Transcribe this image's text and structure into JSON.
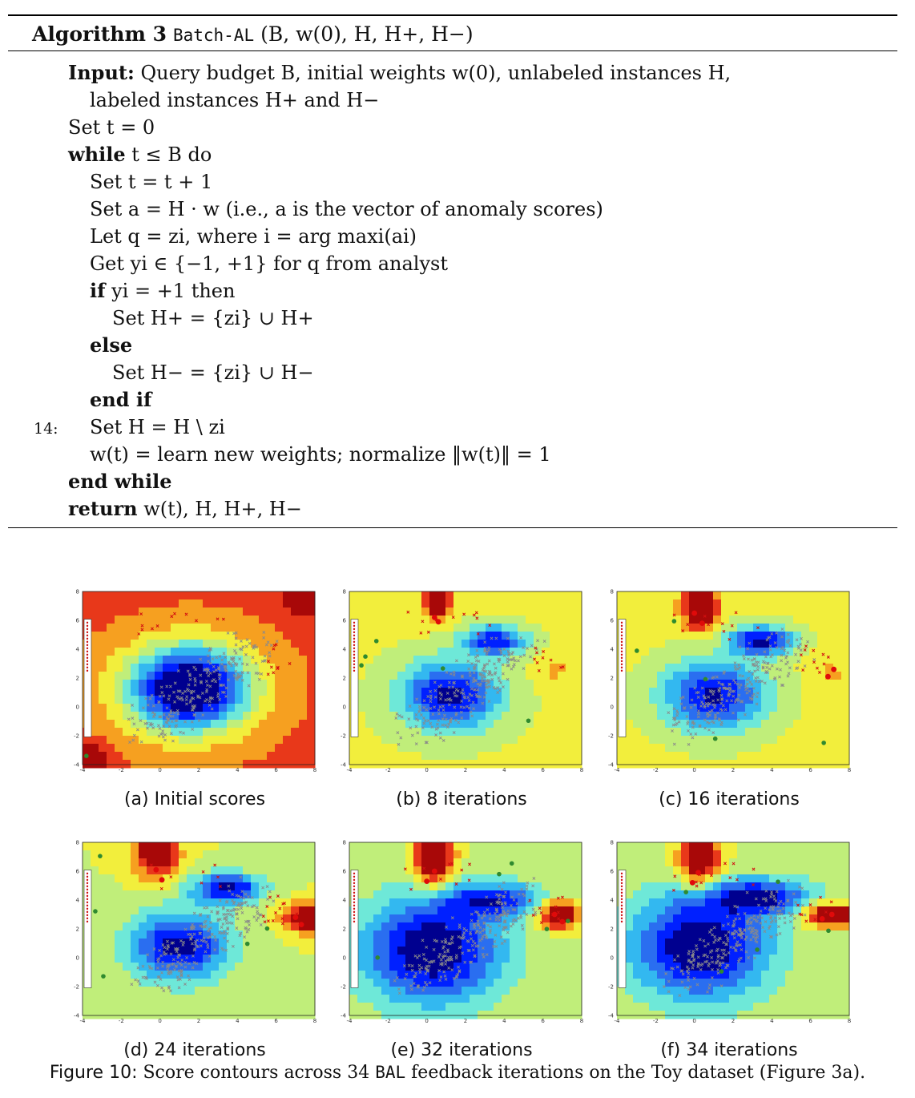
{
  "algorithm": {
    "label": "Algorithm 3",
    "name": "Batch-AL",
    "args": "(B, w(0), H, H+, H−)",
    "lines": [
      {
        "indent": 0,
        "keyword": "Input:",
        "text": "Query budget B, initial weights w(0), unlabeled instances H,"
      },
      {
        "indent": 1,
        "keyword": "",
        "text": "labeled instances H+ and H−"
      },
      {
        "indent": 0,
        "keyword": "",
        "text": "Set t = 0"
      },
      {
        "indent": 0,
        "keyword": "while",
        "text": "t ≤ B do"
      },
      {
        "indent": 1,
        "keyword": "",
        "text": "Set t = t + 1"
      },
      {
        "indent": 1,
        "keyword": "",
        "text": "Set a = H · w (i.e., a is the vector of anomaly scores)"
      },
      {
        "indent": 1,
        "keyword": "",
        "text": "Let q = zi, where i = arg maxi(ai)"
      },
      {
        "indent": 1,
        "keyword": "",
        "text": "Get yi ∈ {−1, +1} for q from analyst"
      },
      {
        "indent": 1,
        "keyword": "if",
        "text": "yi = +1 then"
      },
      {
        "indent": 2,
        "keyword": "",
        "text": "Set H+ = {zi} ∪ H+"
      },
      {
        "indent": 1,
        "keyword": "else",
        "text": ""
      },
      {
        "indent": 2,
        "keyword": "",
        "text": "Set H− = {zi} ∪ H−"
      },
      {
        "indent": 1,
        "keyword": "end if",
        "text": ""
      },
      {
        "indent": 1,
        "keyword": "",
        "text": "Set H = H \\ zi",
        "number": "14:"
      },
      {
        "indent": 1,
        "keyword": "",
        "text": "w(t) = learn new weights; normalize ‖w(t)‖ = 1"
      },
      {
        "indent": 0,
        "keyword": "end while",
        "text": ""
      },
      {
        "indent": 0,
        "keyword": "return",
        "text": "w(t), H, H+, H−"
      }
    ]
  },
  "panels": [
    {
      "caption": "(a) Initial scores"
    },
    {
      "caption": "(b) 8 iterations"
    },
    {
      "caption": "(c) 16 iterations"
    },
    {
      "caption": "(d) 24 iterations"
    },
    {
      "caption": "(e) 32 iterations"
    },
    {
      "caption": "(f) 34 iterations"
    }
  ],
  "figure": {
    "label": "Figure 10:",
    "caption_pre": "Score contours across 34",
    "caption_code": "BAL",
    "caption_post": "feedback iterations on the Toy dataset (Figure 3a)."
  },
  "chart_data": [
    {
      "type": "heatmap",
      "title": "(a) Initial scores",
      "x_ticks": [
        "-4",
        "-2",
        "0",
        "2",
        "4",
        "6",
        "8"
      ],
      "y_ticks": [
        "-4",
        "-2",
        "0",
        "2",
        "4",
        "6",
        "8"
      ],
      "xlim": [
        -4,
        8
      ],
      "ylim": [
        -4,
        8
      ],
      "colormap": "jet"
    },
    {
      "type": "heatmap",
      "title": "(b) 8 iterations",
      "x_ticks": [
        "-4",
        "-2",
        "0",
        "2",
        "4",
        "6",
        "8"
      ],
      "y_ticks": [
        "-4",
        "-2",
        "0",
        "2",
        "4",
        "6",
        "8"
      ],
      "xlim": [
        -4,
        8
      ],
      "ylim": [
        -4,
        8
      ],
      "colormap": "jet"
    },
    {
      "type": "heatmap",
      "title": "(c) 16 iterations",
      "x_ticks": [
        "-4",
        "-2",
        "0",
        "2",
        "4",
        "6",
        "8"
      ],
      "y_ticks": [
        "-4",
        "-2",
        "0",
        "2",
        "4",
        "6",
        "8"
      ],
      "xlim": [
        -4,
        8
      ],
      "ylim": [
        -4,
        8
      ],
      "colormap": "jet"
    },
    {
      "type": "heatmap",
      "title": "(d) 24 iterations",
      "x_ticks": [
        "-4",
        "-2",
        "0",
        "2",
        "4",
        "6",
        "8"
      ],
      "y_ticks": [
        "-4",
        "-2",
        "0",
        "2",
        "4",
        "6",
        "8"
      ],
      "xlim": [
        -4,
        8
      ],
      "ylim": [
        -4,
        8
      ],
      "colormap": "jet"
    },
    {
      "type": "heatmap",
      "title": "(e) 32 iterations",
      "x_ticks": [
        "-4",
        "-2",
        "0",
        "2",
        "4",
        "6",
        "8"
      ],
      "y_ticks": [
        "-4",
        "-2",
        "0",
        "2",
        "4",
        "6",
        "8"
      ],
      "xlim": [
        -4,
        8
      ],
      "ylim": [
        -4,
        8
      ],
      "colormap": "jet"
    },
    {
      "type": "heatmap",
      "title": "(f) 34 iterations",
      "x_ticks": [
        "-4",
        "-2",
        "0",
        "2",
        "4",
        "6",
        "8"
      ],
      "y_ticks": [
        "-4",
        "-2",
        "0",
        "2",
        "4",
        "6",
        "8"
      ],
      "xlim": [
        -4,
        8
      ],
      "ylim": [
        -4,
        8
      ],
      "colormap": "jet"
    }
  ]
}
